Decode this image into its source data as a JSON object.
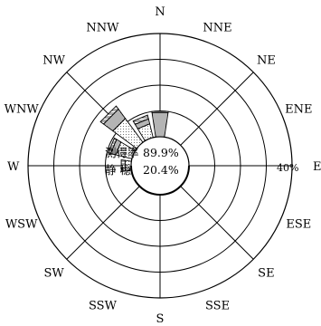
{
  "chart_data": {
    "type": "windrose",
    "title": "",
    "directions": [
      "N",
      "NNE",
      "NE",
      "ENE",
      "E",
      "ESE",
      "SE",
      "SSE",
      "S",
      "SSW",
      "SW",
      "WSW",
      "W",
      "WNW",
      "NW",
      "NNW"
    ],
    "rmax_percent": 40,
    "rings_percent": [
      0,
      10,
      20,
      30,
      40
    ],
    "axis_label": "40%",
    "stats": {
      "measurement_label": "測得率",
      "measurement_value": "89.9%",
      "calm_label": "静 穏",
      "calm_value": "20.4%"
    },
    "series": [
      {
        "shade": "light-dot",
        "values": [
          0,
          0,
          0,
          0,
          0,
          0,
          0,
          0,
          0,
          0,
          0,
          0,
          2.5,
          6.5,
          11.5,
          5.5
        ]
      },
      {
        "shade": "dense-dot",
        "values": [
          9.5,
          0,
          0,
          0,
          0,
          0,
          0,
          0,
          0,
          0,
          0,
          0,
          0,
          2,
          4.5,
          2
        ]
      },
      {
        "shade": "hatched",
        "values": [
          0,
          0,
          0,
          0,
          0,
          0,
          0,
          0,
          0,
          0,
          0,
          0,
          1.5,
          1,
          1.5,
          1.5
        ]
      },
      {
        "shade": "solid",
        "values": [
          0.5,
          0,
          0,
          0,
          0,
          0,
          0,
          0,
          0,
          0,
          0,
          0,
          0,
          0,
          0,
          0
        ]
      }
    ]
  }
}
